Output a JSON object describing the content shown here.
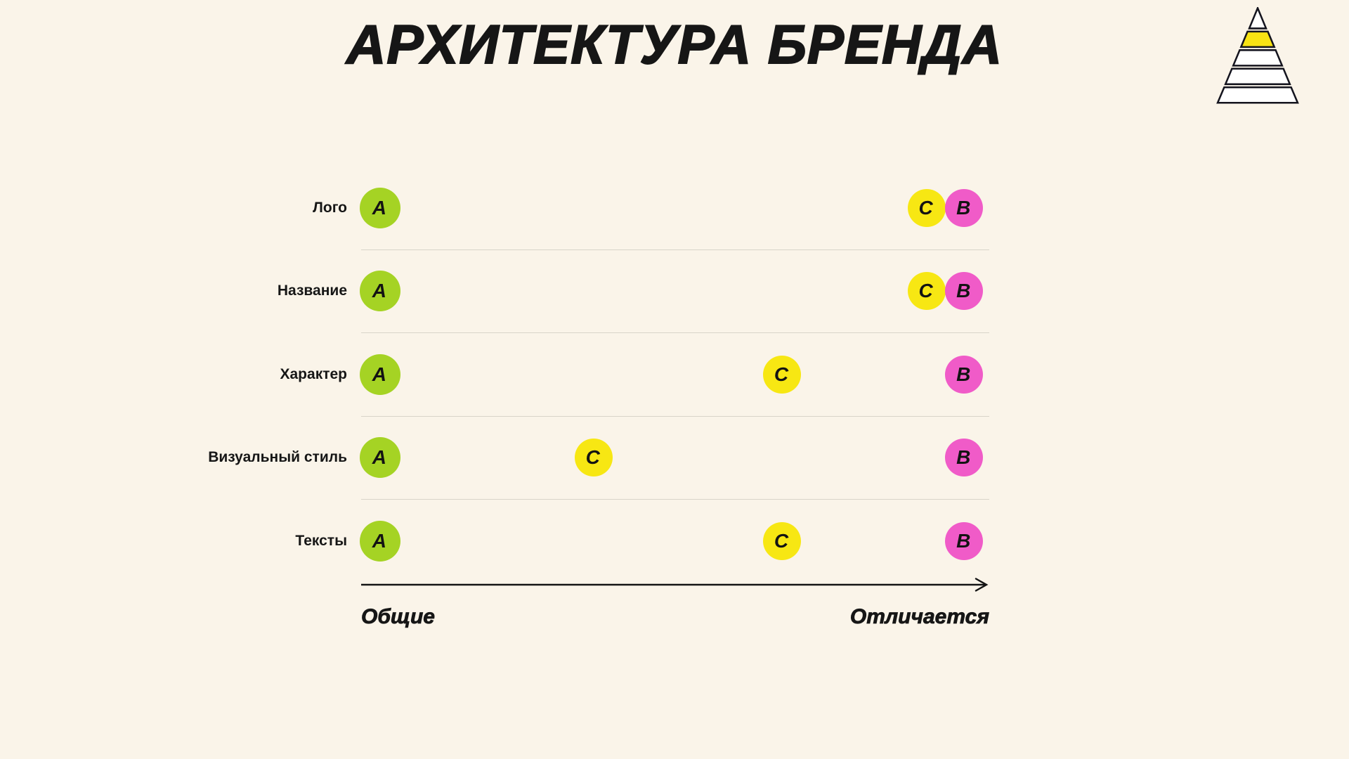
{
  "page": {
    "background": "#FAF4E9",
    "title": "АРХИТЕКТУРА БРЕНДА"
  },
  "icon": {
    "name": "striped-pyramid-logo",
    "stripe_color": "#F8E313",
    "band_color": "#FFFFFF",
    "outline_color": "#14141E"
  },
  "colors": {
    "brand_a": "#A5D324",
    "brand_c": "#F7E713",
    "brand_b": "#F05BC8",
    "text": "#161616",
    "separator": "#D8D4C9"
  },
  "chart_data": {
    "type": "scatter",
    "title": "АРХИТЕКТУРА БРЕНДА",
    "categories": [
      "Лого",
      "Название",
      "Характер",
      "Визуальный стиль",
      "Тексты"
    ],
    "x_axis": {
      "min_label": "Общие",
      "max_label": "Отличается",
      "range": [
        0,
        100
      ],
      "grid": false
    },
    "legend_position": "none",
    "series": [
      {
        "name": "A",
        "color": "#A5D324",
        "values": [
          3,
          3,
          3,
          3,
          3
        ]
      },
      {
        "name": "C",
        "color": "#F7E713",
        "values": [
          90,
          90,
          67,
          37,
          67
        ]
      },
      {
        "name": "B",
        "color": "#F05BC8",
        "values": [
          96,
          96,
          96,
          96,
          96
        ]
      }
    ]
  }
}
